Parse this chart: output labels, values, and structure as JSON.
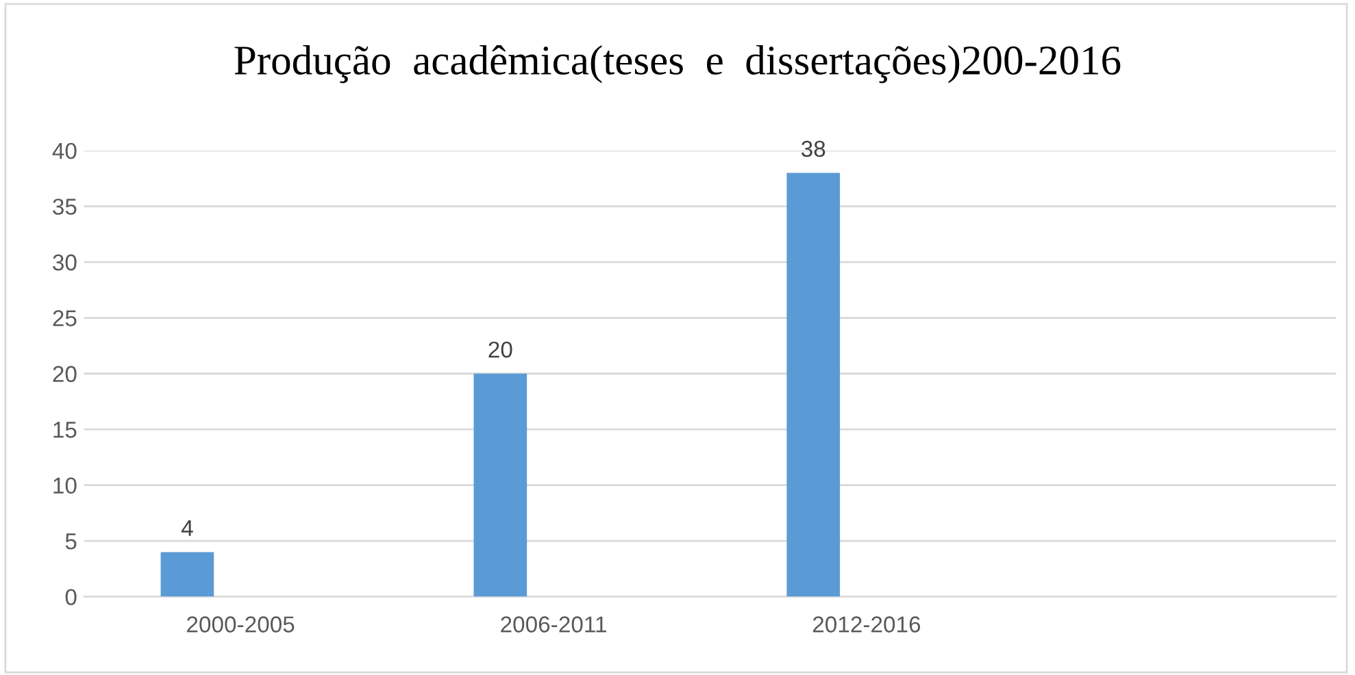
{
  "chart_data": {
    "type": "bar",
    "title": "Produção  acadêmica(teses  e  dissertações)200-2016",
    "categories": [
      "2000-2005",
      "2006-2011",
      "2012-2016",
      null
    ],
    "values": [
      4,
      20,
      38,
      null
    ],
    "color": "#5b9bd5",
    "ylim": [
      0,
      40
    ],
    "yticks": [
      0,
      5,
      10,
      15,
      20,
      25,
      30,
      35,
      40
    ],
    "grid": "y",
    "data_labels": true
  }
}
